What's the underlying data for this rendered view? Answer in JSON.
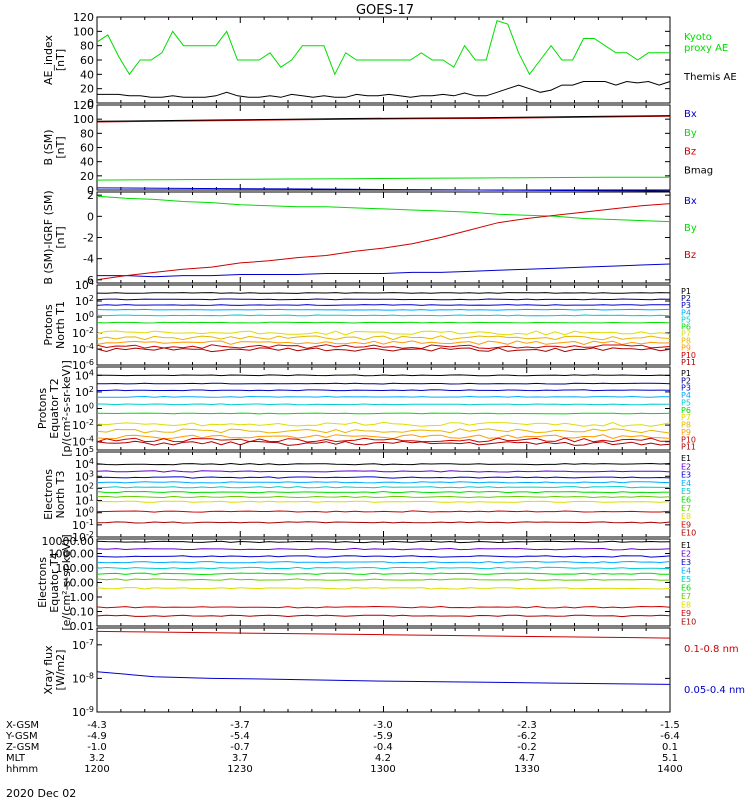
{
  "title": "GOES-17",
  "date_label": "2020 Dec 02",
  "time_axis": {
    "ticks": [
      "1200",
      "1230",
      "1300",
      "1330",
      "1400"
    ],
    "rows": [
      {
        "label": "X-GSM",
        "values": [
          "-4.3",
          "-3.7",
          "-3.0",
          "-2.3",
          "-1.5"
        ]
      },
      {
        "label": "Y-GSM",
        "values": [
          "-4.9",
          "-5.4",
          "-5.9",
          "-6.2",
          "-6.4"
        ]
      },
      {
        "label": "Z-GSM",
        "values": [
          "-1.0",
          "-0.7",
          "-0.4",
          "-0.2",
          "0.1"
        ]
      },
      {
        "label": "MLT",
        "values": [
          "3.2",
          "3.7",
          "4.2",
          "4.7",
          "5.1"
        ]
      },
      {
        "label": "hhmm",
        "values": [
          "1200",
          "1230",
          "1300",
          "1330",
          "1400"
        ]
      }
    ]
  },
  "colors": {
    "black": "#000000",
    "blue": "#0000cc",
    "green": "#00dd00",
    "red": "#cc0000",
    "navy": "#000080",
    "violet": "#6600cc",
    "cyan": "#00aaff",
    "teal": "#00cccc",
    "ygreen": "#66cc00",
    "yellow": "#dddd00",
    "orange": "#ff9900",
    "darkred": "#aa0000",
    "gold": "#e6b800"
  },
  "chart_data": [
    {
      "id": "ae",
      "type": "line",
      "ylabel": "AE_index\n[nT]",
      "ylim": [
        0,
        120
      ],
      "yticks": [
        "0",
        "20",
        "40",
        "60",
        "80",
        "100",
        "120"
      ],
      "legend": [
        {
          "name": "Kyoto\nproxy AE",
          "color": "#00dd00"
        },
        {
          "name": "Themis AE",
          "color": "#000000"
        }
      ],
      "series": [
        {
          "name": "Kyoto proxy AE",
          "color": "#00dd00",
          "values": [
            85,
            95,
            65,
            40,
            60,
            60,
            70,
            100,
            80,
            80,
            80,
            80,
            100,
            60,
            60,
            60,
            70,
            50,
            60,
            80,
            80,
            80,
            40,
            70,
            60,
            60,
            60,
            60,
            60,
            60,
            70,
            60,
            60,
            50,
            80,
            60,
            60,
            115,
            110,
            70,
            40,
            60,
            80,
            60,
            60,
            90,
            90,
            80,
            70,
            70,
            60,
            70,
            70,
            70
          ]
        },
        {
          "name": "Themis AE",
          "color": "#000000",
          "values": [
            12,
            12,
            12,
            10,
            10,
            8,
            8,
            10,
            8,
            8,
            8,
            10,
            15,
            10,
            8,
            8,
            10,
            8,
            12,
            10,
            8,
            10,
            8,
            8,
            12,
            10,
            10,
            12,
            10,
            8,
            10,
            10,
            12,
            10,
            14,
            10,
            10,
            15,
            20,
            25,
            20,
            15,
            18,
            25,
            25,
            30,
            30,
            30,
            25,
            30,
            28,
            30,
            25,
            30
          ]
        }
      ]
    },
    {
      "id": "bsm",
      "type": "line",
      "ylabel": "B (SM)\n[nT]",
      "ylim": [
        0,
        120
      ],
      "yticks": [
        "0",
        "20",
        "40",
        "60",
        "80",
        "100",
        "120"
      ],
      "legend": [
        {
          "name": "Bx",
          "color": "#0000cc"
        },
        {
          "name": "By",
          "color": "#00dd00"
        },
        {
          "name": "Bz",
          "color": "#cc0000"
        },
        {
          "name": "Bmag",
          "color": "#000000"
        }
      ],
      "series": [
        {
          "name": "Bx",
          "color": "#0000cc",
          "values": [
            3,
            2.5,
            2,
            1.5,
            1,
            0.5,
            0,
            -0.5,
            -1,
            -1.5
          ]
        },
        {
          "name": "By",
          "color": "#00dd00",
          "values": [
            14,
            14.5,
            15,
            15.5,
            16,
            16.5,
            17,
            17.5,
            18,
            18
          ]
        },
        {
          "name": "Bz",
          "color": "#cc0000",
          "values": [
            96,
            97,
            98,
            99,
            100,
            100.5,
            101,
            102,
            103,
            104
          ]
        },
        {
          "name": "Bmag",
          "color": "#000000",
          "values": [
            97,
            98,
            99,
            100,
            101,
            101.5,
            102,
            103,
            104,
            105
          ]
        }
      ]
    },
    {
      "id": "bdiff",
      "type": "line",
      "ylabel": "B (SM)-IGRF (SM)\n[nT]",
      "ylim": [
        -6.3,
        2.3
      ],
      "yticks": [
        "-6",
        "-4",
        "-2",
        "0",
        "2"
      ],
      "legend": [
        {
          "name": "Bx",
          "color": "#0000cc"
        },
        {
          "name": "By",
          "color": "#00dd00"
        },
        {
          "name": "Bz",
          "color": "#cc0000"
        }
      ],
      "series": [
        {
          "name": "Bx",
          "color": "#0000cc",
          "values": [
            -5.6,
            -5.6,
            -5.7,
            -5.6,
            -5.6,
            -5.5,
            -5.5,
            -5.5,
            -5.4,
            -5.4,
            -5.4,
            -5.3,
            -5.3,
            -5.2,
            -5.1,
            -5.0,
            -4.9,
            -4.8,
            -4.7,
            -4.6,
            -4.5
          ]
        },
        {
          "name": "By",
          "color": "#00dd00",
          "values": [
            1.9,
            1.7,
            1.6,
            1.4,
            1.3,
            1.1,
            1.0,
            0.9,
            0.9,
            0.8,
            0.7,
            0.6,
            0.5,
            0.4,
            0.2,
            0.1,
            0.0,
            -0.2,
            -0.3,
            -0.4,
            -0.5
          ]
        },
        {
          "name": "Bz",
          "color": "#cc0000",
          "values": [
            -6.0,
            -5.6,
            -5.3,
            -5.0,
            -4.8,
            -4.4,
            -4.2,
            -3.9,
            -3.7,
            -3.3,
            -3.0,
            -2.6,
            -2.0,
            -1.3,
            -0.6,
            -0.2,
            0.1,
            0.4,
            0.7,
            1.0,
            1.2
          ]
        }
      ]
    },
    {
      "id": "p_t1",
      "type": "line",
      "ylabel": "Protons\nNorth T1",
      "log": true,
      "ylim": [
        -6,
        4
      ],
      "yticks": [
        "10^4",
        "10^2",
        "10^0",
        "10^-2",
        "10^-4",
        "10^-6"
      ],
      "channels": [
        {
          "name": "P1",
          "color": "#000000",
          "level": 3.0
        },
        {
          "name": "P2",
          "color": "#000080",
          "level": 2.2
        },
        {
          "name": "P3",
          "color": "#0000cc",
          "level": 1.5
        },
        {
          "name": "P4",
          "color": "#00aaff",
          "level": 0.9
        },
        {
          "name": "P5",
          "color": "#00cccc",
          "level": 0.2
        },
        {
          "name": "P6",
          "color": "#00dd00",
          "level": -0.7
        },
        {
          "name": "P7",
          "color": "#dddd00",
          "level": -2.0
        },
        {
          "name": "P8",
          "color": "#e6b800",
          "level": -2.6
        },
        {
          "name": "P9",
          "color": "#ff9900",
          "level": -3.2
        },
        {
          "name": "P10",
          "color": "#cc0000",
          "level": -3.7
        },
        {
          "name": "P11",
          "color": "#aa0000",
          "level": -4.1
        }
      ]
    },
    {
      "id": "p_t2",
      "type": "line",
      "ylabel": "Protons\nEquator T2\n[p/(cm²-s-sr-keV)]",
      "log": true,
      "ylim": [
        -5,
        5
      ],
      "yticks": [
        "10^4",
        "10^2",
        "10^0",
        "10^-2",
        "10^-4"
      ],
      "channels": [
        {
          "name": "P1",
          "color": "#000000",
          "level": 4.0
        },
        {
          "name": "P2",
          "color": "#000080",
          "level": 3.0
        },
        {
          "name": "P3",
          "color": "#0000cc",
          "level": 2.2
        },
        {
          "name": "P4",
          "color": "#00aaff",
          "level": 1.4
        },
        {
          "name": "P5",
          "color": "#00cccc",
          "level": 0.5
        },
        {
          "name": "P6",
          "color": "#00dd00",
          "level": -0.6
        },
        {
          "name": "P7",
          "color": "#dddd00",
          "level": -1.9
        },
        {
          "name": "P8",
          "color": "#e6b800",
          "level": -2.7
        },
        {
          "name": "P9",
          "color": "#ff9900",
          "level": -3.4
        },
        {
          "name": "P10",
          "color": "#cc0000",
          "level": -3.8
        },
        {
          "name": "P11",
          "color": "#aa0000",
          "level": -4.2
        }
      ]
    },
    {
      "id": "e_t3",
      "type": "line",
      "ylabel": "Electrons\nNorth T3",
      "log": true,
      "ylim": [
        -2,
        5
      ],
      "yticks": [
        "10^5",
        "10^4",
        "10^3",
        "10^2",
        "10^1",
        "10^0",
        "10^-1",
        "10^-2"
      ],
      "channels": [
        {
          "name": "E1",
          "color": "#000000",
          "level": 4.0
        },
        {
          "name": "E2",
          "color": "#6600cc",
          "level": 3.4
        },
        {
          "name": "E3",
          "color": "#0000cc",
          "level": 2.9
        },
        {
          "name": "E4",
          "color": "#00aaff",
          "level": 2.5
        },
        {
          "name": "E5",
          "color": "#00cccc",
          "level": 2.1
        },
        {
          "name": "E6",
          "color": "#00dd00",
          "level": 1.7
        },
        {
          "name": "E7",
          "color": "#66cc00",
          "level": 1.3
        },
        {
          "name": "E8",
          "color": "#dddd00",
          "level": 0.9
        },
        {
          "name": "E9",
          "color": "#cc0000",
          "level": 0.1
        },
        {
          "name": "E10",
          "color": "#aa0000",
          "level": -0.8
        }
      ]
    },
    {
      "id": "e_t4",
      "type": "line",
      "ylabel": "Electrons\nEquator T4\n[e/(cm²-s-sr-keV)]",
      "log": true,
      "ylim": [
        -2,
        4
      ],
      "yticks": [
        "1000.00",
        "100.00",
        "10.00",
        "1.00",
        "0.10",
        "0.01"
      ],
      "yticks_top_extra": "10000.00",
      "channels": [
        {
          "name": "E1",
          "color": "#000000",
          "level": 3.8
        },
        {
          "name": "E2",
          "color": "#6600cc",
          "level": 3.3
        },
        {
          "name": "E3",
          "color": "#0000cc",
          "level": 2.8
        },
        {
          "name": "E4",
          "color": "#00aaff",
          "level": 2.4
        },
        {
          "name": "E5",
          "color": "#00cccc",
          "level": 2.0
        },
        {
          "name": "E6",
          "color": "#00dd00",
          "level": 1.6
        },
        {
          "name": "E7",
          "color": "#66cc00",
          "level": 1.2
        },
        {
          "name": "E8",
          "color": "#dddd00",
          "level": 0.6
        },
        {
          "name": "E9",
          "color": "#cc0000",
          "level": -0.7
        },
        {
          "name": "E10",
          "color": "#aa0000",
          "level": -1.3
        }
      ]
    },
    {
      "id": "xray",
      "type": "line",
      "ylabel": "Xray flux\n[W/m2]",
      "log": true,
      "ylim": [
        -9,
        -6.5
      ],
      "yticks": [
        "10^-6",
        "10^-7",
        "10^-8",
        "10^-9"
      ],
      "legend": [
        {
          "name": "0.1-0.8 nm",
          "color": "#cc0000"
        },
        {
          "name": "0.05-0.4 nm",
          "color": "#0000cc"
        }
      ],
      "series": [
        {
          "name": "0.1-0.8 nm",
          "color": "#cc0000",
          "values": [
            -6.6,
            -6.62,
            -6.64,
            -6.66,
            -6.68,
            -6.7,
            -6.72,
            -6.74,
            -6.76,
            -6.78,
            -6.8
          ]
        },
        {
          "name": "0.05-0.4 nm",
          "color": "#0000cc",
          "values": [
            -7.8,
            -7.95,
            -8.0,
            -8.02,
            -8.05,
            -8.08,
            -8.1,
            -8.12,
            -8.14,
            -8.16,
            -8.18
          ]
        }
      ]
    }
  ]
}
